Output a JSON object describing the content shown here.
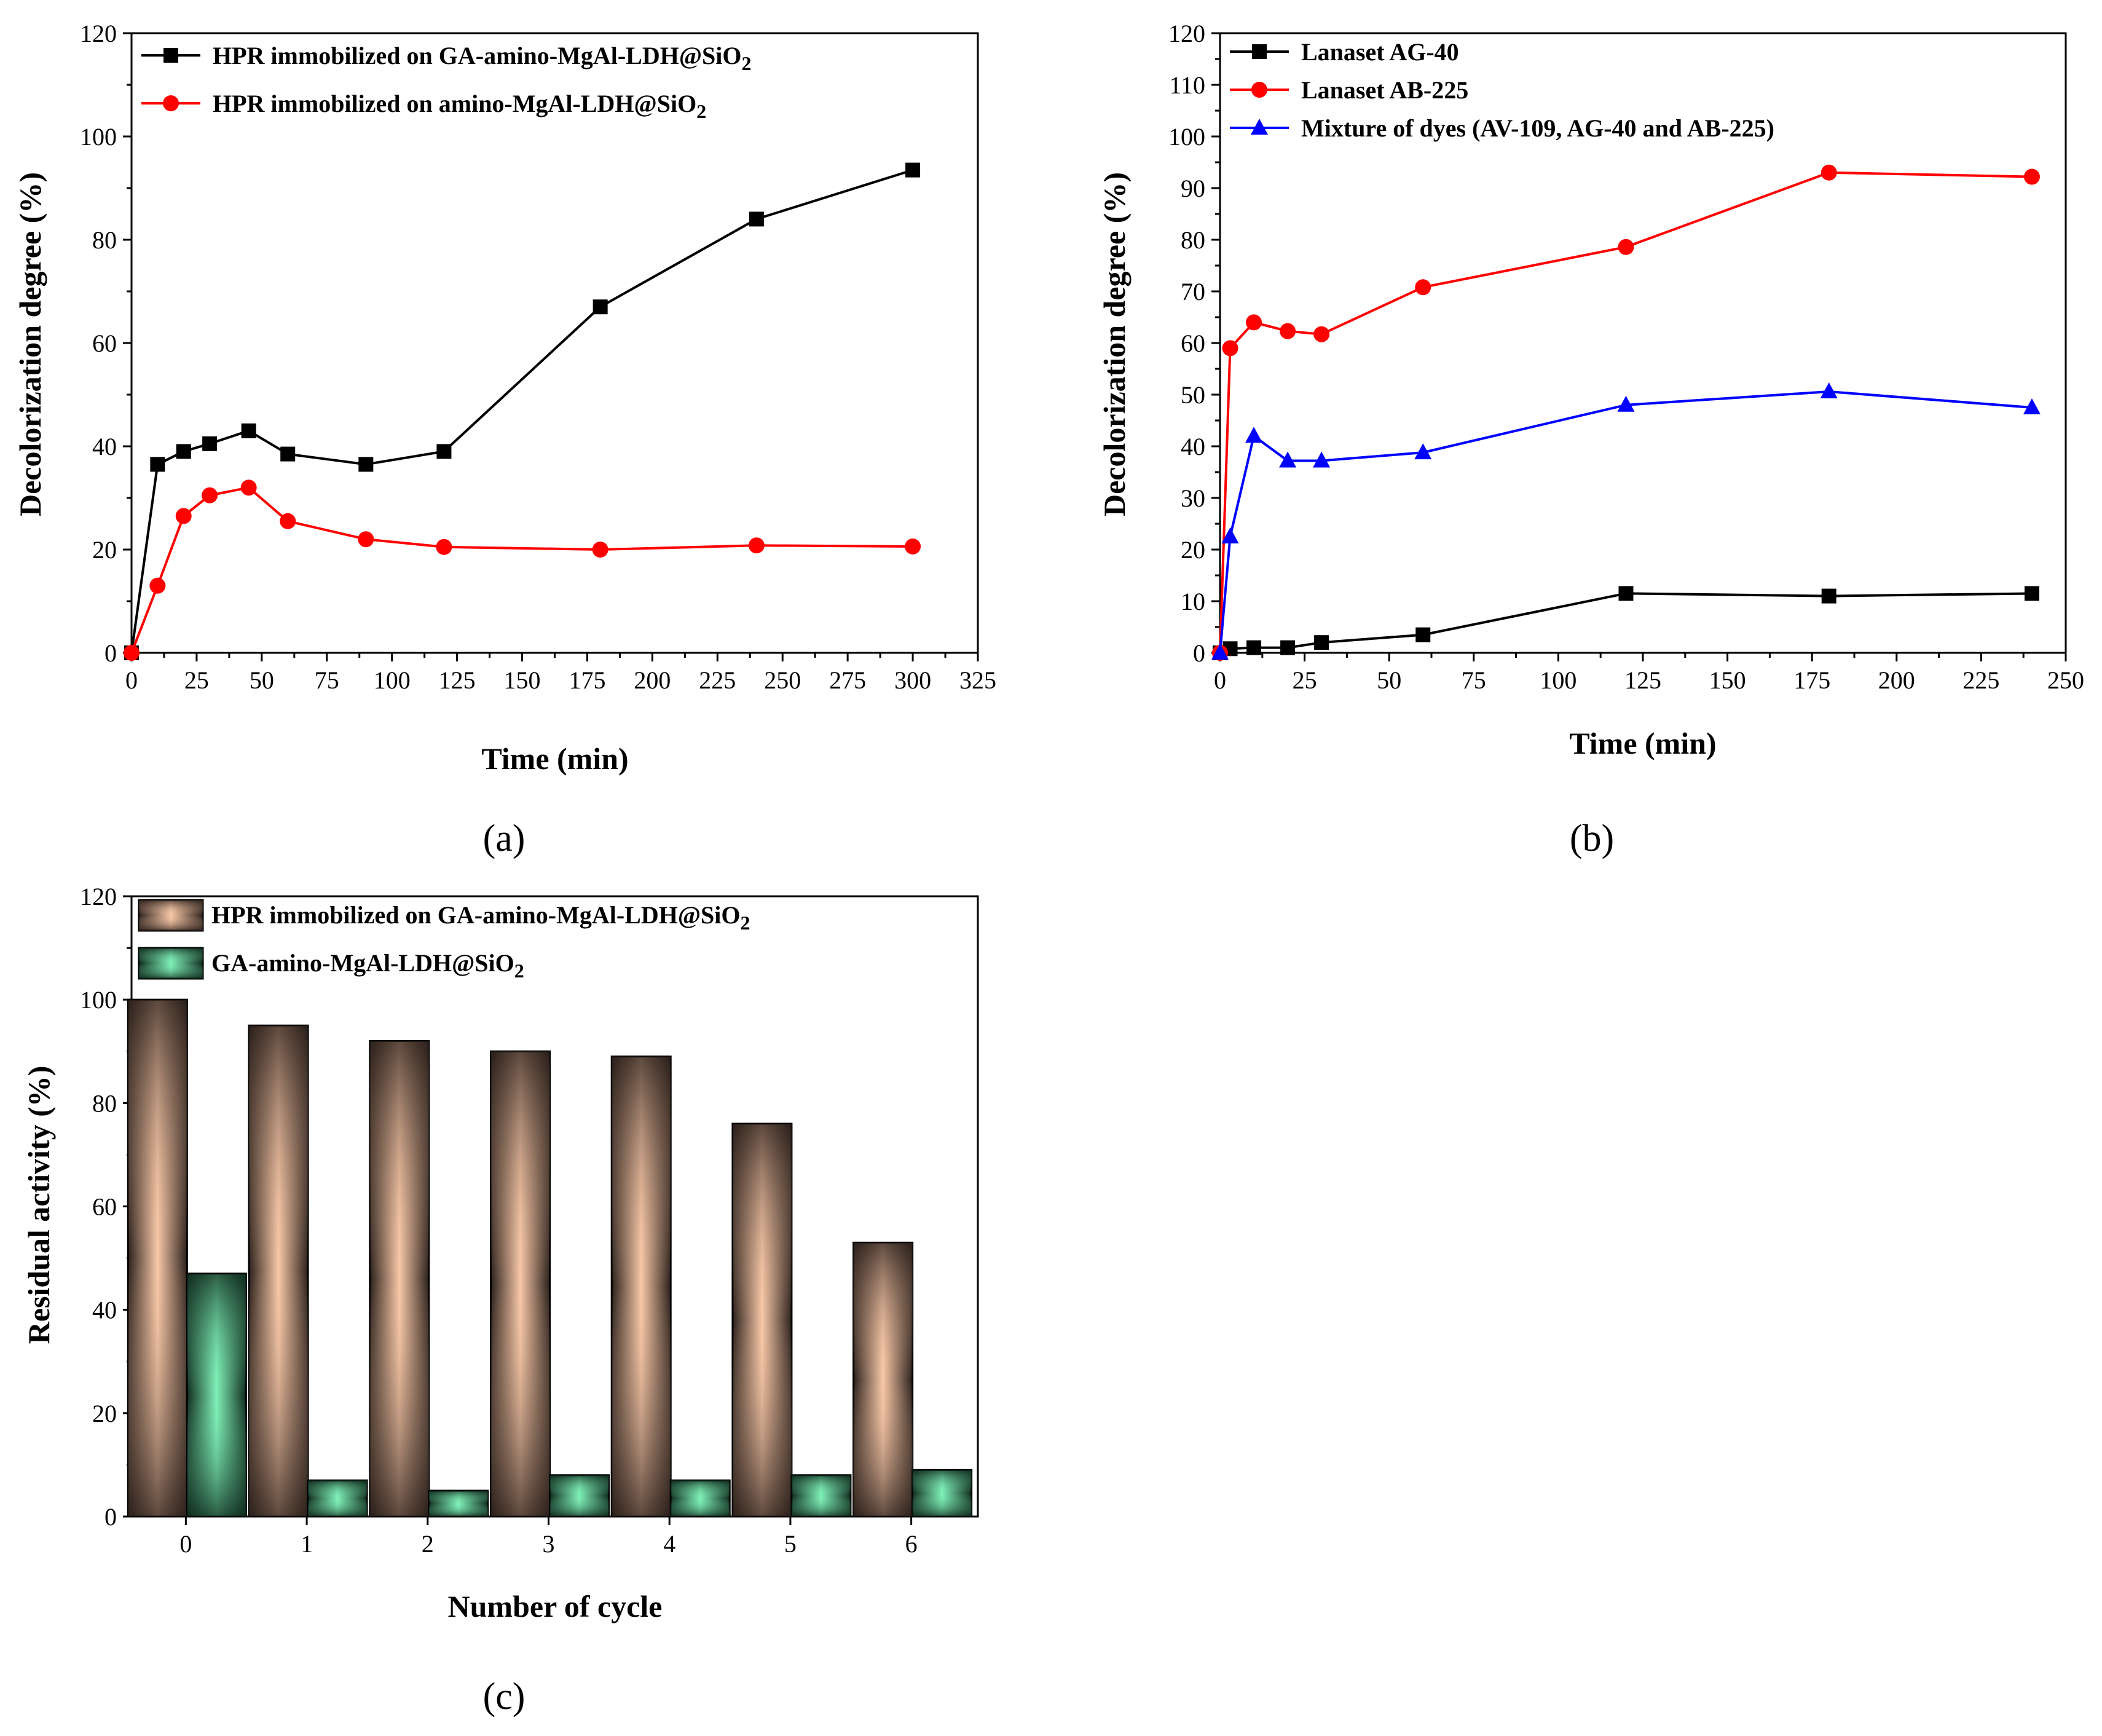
{
  "chart_data": [
    {
      "panel": "a",
      "panel_label": "(a)",
      "type": "line",
      "xlabel": "Time (min)",
      "ylabel": "Decolorization degree (%)",
      "xlim": [
        0,
        325
      ],
      "ylim": [
        0,
        120
      ],
      "xticks": [
        0,
        25,
        50,
        75,
        100,
        125,
        150,
        175,
        200,
        225,
        250,
        275,
        300,
        325
      ],
      "yticks": [
        0,
        20,
        40,
        60,
        80,
        100,
        120
      ],
      "legend_position": "top-left",
      "series": [
        {
          "name": "HPR immobilized on GA-amino-MgAl-LDH@SiO₂",
          "color": "#000000",
          "marker": "square",
          "x": [
            0,
            10,
            20,
            30,
            45,
            60,
            90,
            120,
            180,
            240,
            300
          ],
          "y": [
            0,
            36.5,
            39,
            40.5,
            43,
            38.5,
            36.5,
            39,
            67,
            84,
            93.5
          ]
        },
        {
          "name": "HPR immobilized on amino-MgAl-LDH@SiO₂",
          "color": "#ff0000",
          "marker": "circle",
          "x": [
            0,
            10,
            20,
            30,
            45,
            60,
            90,
            120,
            180,
            240,
            300
          ],
          "y": [
            0,
            13,
            26.5,
            30.5,
            32,
            25.5,
            22,
            20.5,
            20,
            20.8,
            20.6
          ]
        }
      ]
    },
    {
      "panel": "b",
      "panel_label": "(b)",
      "type": "line",
      "xlabel": "Time (min)",
      "ylabel": "Decolorization degree (%)",
      "xlim": [
        0,
        250
      ],
      "ylim": [
        0,
        120
      ],
      "xticks": [
        0,
        25,
        50,
        75,
        100,
        125,
        150,
        175,
        200,
        225,
        250
      ],
      "yticks": [
        0,
        10,
        20,
        30,
        40,
        50,
        60,
        70,
        80,
        90,
        100,
        110,
        120
      ],
      "legend_position": "top-left",
      "series": [
        {
          "name": "Lanaset AG-40",
          "color": "#000000",
          "marker": "square",
          "x": [
            0,
            3,
            10,
            20,
            30,
            60,
            120,
            180,
            240
          ],
          "y": [
            0,
            0.8,
            1,
            1,
            2,
            3.5,
            11.5,
            11,
            11.5
          ]
        },
        {
          "name": "Lanaset AB-225",
          "color": "#ff0000",
          "marker": "circle",
          "x": [
            0,
            3,
            10,
            20,
            30,
            60,
            120,
            180,
            240
          ],
          "y": [
            0,
            59,
            64,
            62.3,
            61.7,
            70.8,
            78.6,
            93,
            92.2
          ]
        },
        {
          "name": "Mixture of dyes (AV-109, AG-40 and AB-225)",
          "color": "#0000ff",
          "marker": "triangle",
          "x": [
            0,
            3,
            10,
            20,
            30,
            60,
            120,
            180,
            240
          ],
          "y": [
            0,
            22.5,
            42,
            37.2,
            37.2,
            38.8,
            48,
            50.6,
            47.5
          ]
        }
      ]
    },
    {
      "panel": "c",
      "panel_label": "(c)",
      "type": "bar",
      "xlabel": "Number of cycle",
      "ylabel": "Residual activity (%)",
      "categories": [
        "0",
        "1",
        "2",
        "3",
        "4",
        "5",
        "6"
      ],
      "ylim": [
        0,
        120
      ],
      "yticks": [
        0,
        20,
        40,
        60,
        80,
        100,
        120
      ],
      "legend_position": "top-left",
      "series": [
        {
          "name": "HPR immobilized on GA-amino-MgAl-LDH@SiO₂",
          "color_light": "#f8c8a8",
          "color_dark": "#2a1f1a",
          "values": [
            100,
            95,
            92,
            90,
            89,
            76,
            53
          ]
        },
        {
          "name": "GA-amino-MgAl-LDH@SiO₂",
          "color_light": "#7ff0b8",
          "color_dark": "#0f2a1c",
          "values": [
            47,
            7,
            5,
            8,
            7,
            8,
            9
          ]
        }
      ]
    }
  ]
}
